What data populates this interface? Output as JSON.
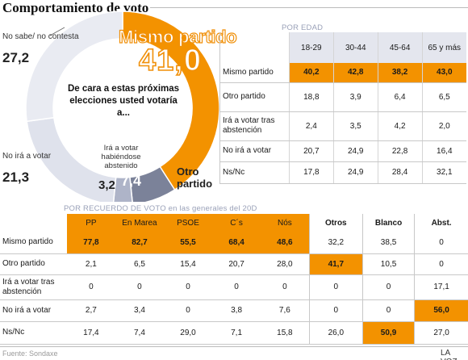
{
  "title": "Comportamiento de voto",
  "question": "De cara a estas próximas elecciones usted votaría a...",
  "chart_data": [
    {
      "type": "pie",
      "question": "De cara a estas próximas elecciones usted votaría a...",
      "slices": [
        {
          "label": "Mismo partido",
          "value": 41.0,
          "value_text": "41,0",
          "color": "#f39200"
        },
        {
          "label": "Otro partido",
          "value": 7.4,
          "value_text": "7,4",
          "color": "#7b8299"
        },
        {
          "label": "Irá a votar habiéndose abstenido",
          "value": 3.2,
          "value_text": "3,2",
          "color": "#aeb4c8"
        },
        {
          "label": "No irá a votar",
          "value": 21.3,
          "value_text": "21,3",
          "color": "#dfe2ec"
        },
        {
          "label": "No sabe/ no contesta",
          "value": 27.2,
          "value_text": "27,2",
          "color": "#e9ebf2"
        }
      ]
    },
    {
      "type": "table",
      "title": "POR EDAD",
      "columns": [
        "18-29",
        "30-44",
        "45-64",
        "65 y más"
      ],
      "rows": [
        {
          "label": "Mismo partido",
          "values": [
            "40,2",
            "42,8",
            "38,2",
            "43,0"
          ],
          "highlight": [
            true,
            true,
            true,
            true
          ]
        },
        {
          "label": "Otro partido",
          "values": [
            "18,8",
            "3,9",
            "6,4",
            "6,5"
          ],
          "highlight": [
            false,
            false,
            false,
            false
          ]
        },
        {
          "label": "Irá a votar tras abstención",
          "values": [
            "2,4",
            "3,5",
            "4,2",
            "2,0"
          ],
          "highlight": [
            false,
            false,
            false,
            false
          ]
        },
        {
          "label": "No irá a votar",
          "values": [
            "20,7",
            "24,9",
            "22,8",
            "16,4"
          ],
          "highlight": [
            false,
            false,
            false,
            false
          ]
        },
        {
          "label": "Ns/Nc",
          "values": [
            "17,8",
            "24,9",
            "28,4",
            "32,1"
          ],
          "highlight": [
            false,
            false,
            false,
            false
          ]
        }
      ]
    },
    {
      "type": "table",
      "title": "POR RECUERDO DE VOTO en las generales del 20D",
      "columns": [
        "PP",
        "En Marea",
        "PSOE",
        "C´s",
        "Nós",
        "Otros",
        "Blanco",
        "Abst."
      ],
      "rows": [
        {
          "label": "Mismo partido",
          "values": [
            "77,8",
            "82,7",
            "55,5",
            "68,4",
            "48,6",
            "32,2",
            "38,5",
            "0"
          ],
          "highlight": [
            true,
            true,
            true,
            true,
            true,
            false,
            false,
            false
          ]
        },
        {
          "label": "Otro partido",
          "values": [
            "2,1",
            "6,5",
            "15,4",
            "20,7",
            "28,0",
            "41,7",
            "10,5",
            "0"
          ],
          "highlight": [
            false,
            false,
            false,
            false,
            false,
            true,
            false,
            false
          ]
        },
        {
          "label": "Irá a votar tras abstención",
          "values": [
            "0",
            "0",
            "0",
            "0",
            "0",
            "0",
            "0",
            "17,1"
          ],
          "highlight": [
            false,
            false,
            false,
            false,
            false,
            false,
            false,
            false
          ]
        },
        {
          "label": "No irá a votar",
          "values": [
            "2,7",
            "3,4",
            "0",
            "3,8",
            "7,6",
            "0",
            "0",
            "56,0"
          ],
          "highlight": [
            false,
            false,
            false,
            false,
            false,
            false,
            false,
            true
          ]
        },
        {
          "label": "Ns/Nc",
          "values": [
            "17,4",
            "7,4",
            "29,0",
            "7,1",
            "15,8",
            "26,0",
            "50,9",
            "27,0"
          ],
          "highlight": [
            false,
            false,
            false,
            false,
            false,
            false,
            true,
            false
          ]
        }
      ]
    }
  ],
  "footer": {
    "source": "Fuente: Sondaxe",
    "logo": "LA VOZ"
  },
  "colors": {
    "accent": "#f39200",
    "header_bg": "#e4e6ee",
    "section_title": "#9aa1b8"
  }
}
